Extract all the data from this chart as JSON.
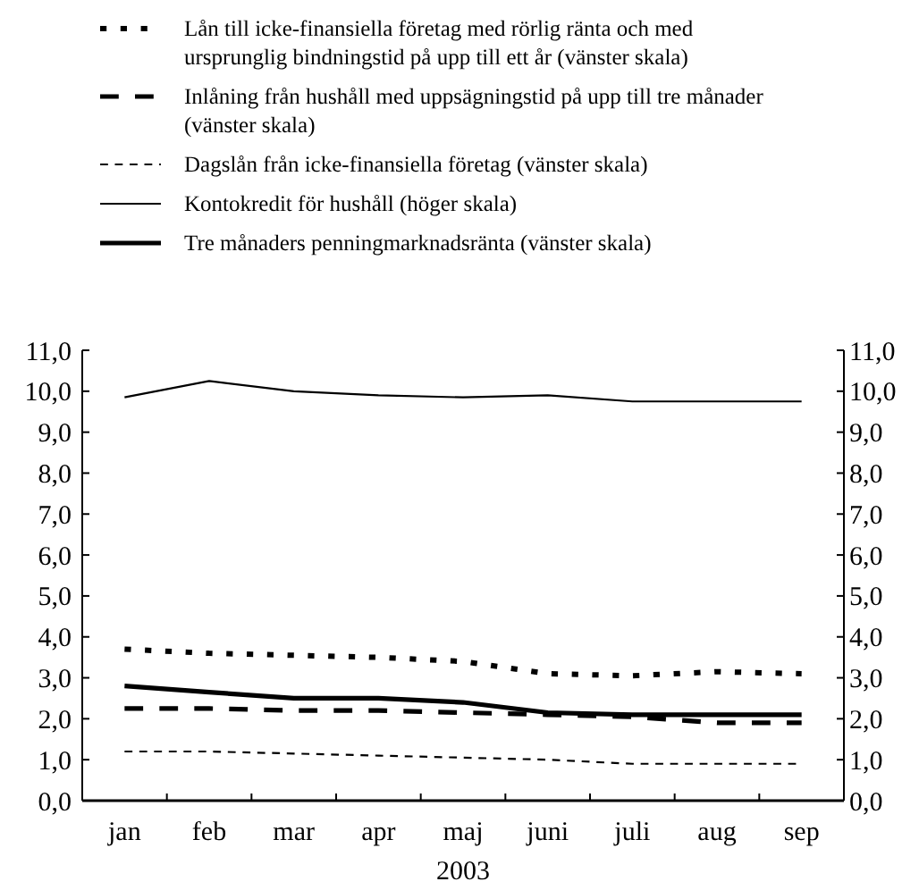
{
  "chart_data": {
    "type": "line",
    "xlabel": "2003",
    "categories": [
      "jan",
      "feb",
      "mar",
      "apr",
      "maj",
      "juni",
      "juli",
      "aug",
      "sep"
    ],
    "series": [
      {
        "name": "Lån till icke-finansiella företag med rörlig ränta och med ursprunglig bindningstid på upp till ett år (vänster skala)",
        "color": "#000000",
        "line_style": "dotted",
        "values": [
          3.7,
          3.6,
          3.55,
          3.5,
          3.4,
          3.1,
          3.05,
          3.15,
          3.1
        ]
      },
      {
        "name": "Inlåning från hushåll med uppsägningstid på upp till tre månader (vänster skala)",
        "color": "#000000",
        "line_style": "dashed",
        "values": [
          2.25,
          2.25,
          2.2,
          2.2,
          2.15,
          2.1,
          2.05,
          1.9,
          1.9
        ]
      },
      {
        "name": "Dagslån från icke-finansiella företag (vänster skala)",
        "color": "#000000",
        "line_style": "dashed",
        "values": [
          1.2,
          1.2,
          1.15,
          1.1,
          1.05,
          1.0,
          0.9,
          0.9,
          0.9
        ]
      },
      {
        "name": "Kontokredit för hushåll (höger skala)",
        "color": "#000000",
        "line_style": "solid",
        "axis": "y2",
        "values": [
          9.85,
          10.25,
          10.0,
          9.9,
          9.85,
          9.9,
          9.75,
          9.75,
          9.75
        ]
      },
      {
        "name": "Tre månaders penningmarknadsränta (vänster skala)",
        "color": "#000000",
        "line_style": "solid",
        "values": [
          2.8,
          2.65,
          2.5,
          2.5,
          2.4,
          2.15,
          2.1,
          2.1,
          2.1
        ]
      }
    ],
    "ylim": [
      0,
      11
    ],
    "yticks": [
      {
        "value": 0,
        "label": "0,0"
      },
      {
        "value": 1,
        "label": "1,0"
      },
      {
        "value": 2,
        "label": "2,0"
      },
      {
        "value": 3,
        "label": "3,0"
      },
      {
        "value": 4,
        "label": "4,0"
      },
      {
        "value": 5,
        "label": "5,0"
      },
      {
        "value": 6,
        "label": "6,0"
      },
      {
        "value": 7,
        "label": "7,0"
      },
      {
        "value": 8,
        "label": "8,0"
      },
      {
        "value": 9,
        "label": "9,0"
      },
      {
        "value": 10,
        "label": "10,0"
      },
      {
        "value": 11,
        "label": "11,0"
      }
    ],
    "y2lim": [
      0,
      11
    ],
    "y2ticks": [
      {
        "value": 0,
        "label": "0,0"
      },
      {
        "value": 1,
        "label": "1,0"
      },
      {
        "value": 2,
        "label": "2,0"
      },
      {
        "value": 3,
        "label": "3,0"
      },
      {
        "value": 4,
        "label": "4,0"
      },
      {
        "value": 5,
        "label": "5,0"
      },
      {
        "value": 6,
        "label": "6,0"
      },
      {
        "value": 7,
        "label": "7,0"
      },
      {
        "value": 8,
        "label": "8,0"
      },
      {
        "value": 9,
        "label": "9,0"
      },
      {
        "value": 10,
        "label": "10,0"
      },
      {
        "value": 11,
        "label": "11,0"
      }
    ],
    "grid": false,
    "legend": "top"
  }
}
